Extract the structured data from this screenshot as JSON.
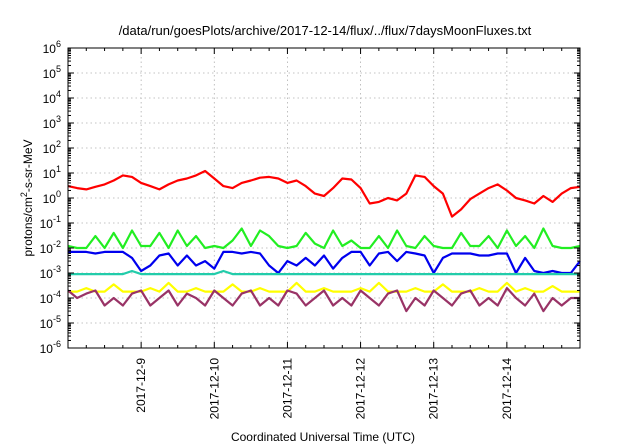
{
  "chart_data": {
    "type": "line",
    "title": "/data/run/goesPlots/archive/2017-12-14/flux/../flux/7daysMoonFluxes.txt",
    "xlabel": "Coordinated Universal Time (UTC)",
    "ylabel_parts": [
      "protons/cm",
      "2",
      "-s-sr-MeV"
    ],
    "yscale": "log",
    "ylim": [
      1e-06,
      1000000.0
    ],
    "xlim": [
      "2017-12-08T00:00",
      "2017-12-15T00:00"
    ],
    "grid": true,
    "legend": "none",
    "x_ticks": [
      "2017-12-9",
      "2017-12-10",
      "2017-12-11",
      "2017-12-12",
      "2017-12-13",
      "2017-12-14"
    ],
    "y_ticks": [
      {
        "base": "10",
        "exp": "-6",
        "value": 1e-06
      },
      {
        "base": "10",
        "exp": "-5",
        "value": 1e-05
      },
      {
        "base": "10",
        "exp": "-4",
        "value": 0.0001
      },
      {
        "base": "10",
        "exp": "-3",
        "value": 0.001
      },
      {
        "base": "10",
        "exp": "-2",
        "value": 0.01
      },
      {
        "base": "10",
        "exp": "-1",
        "value": 0.1
      },
      {
        "base": "10",
        "exp": "0",
        "value": 1
      },
      {
        "base": "10",
        "exp": "1",
        "value": 10
      },
      {
        "base": "10",
        "exp": "2",
        "value": 100
      },
      {
        "base": "10",
        "exp": "3",
        "value": 1000
      },
      {
        "base": "10",
        "exp": "4",
        "value": 10000
      },
      {
        "base": "10",
        "exp": "5",
        "value": 100000
      },
      {
        "base": "10",
        "exp": "6",
        "value": 1000000
      }
    ],
    "series": [
      {
        "color": "#ff0000",
        "x": [
          "2017-12-08T00:00",
          "2017-12-08T03:00",
          "2017-12-08T06:00",
          "2017-12-08T09:00",
          "2017-12-08T12:00",
          "2017-12-08T15:00",
          "2017-12-08T18:00",
          "2017-12-08T21:00",
          "2017-12-09T00:00",
          "2017-12-09T03:00",
          "2017-12-09T06:00",
          "2017-12-09T09:00",
          "2017-12-09T12:00",
          "2017-12-09T15:00",
          "2017-12-09T18:00",
          "2017-12-09T21:00",
          "2017-12-10T00:00",
          "2017-12-10T03:00",
          "2017-12-10T06:00",
          "2017-12-10T09:00",
          "2017-12-10T12:00",
          "2017-12-10T15:00",
          "2017-12-10T18:00",
          "2017-12-10T21:00",
          "2017-12-11T00:00",
          "2017-12-11T03:00",
          "2017-12-11T06:00",
          "2017-12-11T09:00",
          "2017-12-11T12:00",
          "2017-12-11T15:00",
          "2017-12-11T18:00",
          "2017-12-11T21:00",
          "2017-12-12T00:00",
          "2017-12-12T03:00",
          "2017-12-12T06:00",
          "2017-12-12T09:00",
          "2017-12-12T12:00",
          "2017-12-12T15:00",
          "2017-12-12T18:00",
          "2017-12-12T21:00",
          "2017-12-13T00:00",
          "2017-12-13T03:00",
          "2017-12-13T06:00",
          "2017-12-13T09:00",
          "2017-12-13T12:00",
          "2017-12-13T15:00",
          "2017-12-13T18:00",
          "2017-12-13T21:00",
          "2017-12-14T00:00",
          "2017-12-14T03:00",
          "2017-12-14T06:00",
          "2017-12-14T09:00",
          "2017-12-14T12:00",
          "2017-12-14T15:00",
          "2017-12-14T18:00",
          "2017-12-14T21:00",
          "2017-12-15T00:00"
        ],
        "values": [
          3.0,
          2.5,
          2.2,
          2.8,
          3.5,
          5,
          8,
          7,
          4,
          3,
          2.2,
          3.5,
          5,
          6,
          8,
          12,
          6,
          3,
          2.5,
          4,
          5,
          6.5,
          7,
          6,
          4,
          5,
          3,
          1.5,
          1.2,
          2.5,
          6,
          5.5,
          2.5,
          0.6,
          0.7,
          1,
          0.8,
          1.5,
          8,
          7,
          3,
          1.5,
          0.18,
          0.35,
          0.9,
          1.5,
          2.5,
          3.5,
          2,
          1,
          0.8,
          0.6,
          1.2,
          0.7,
          1.5,
          2.5,
          2.8
        ]
      },
      {
        "color": "#22ee22",
        "x": [
          "2017-12-08T00:00",
          "2017-12-08T03:00",
          "2017-12-08T06:00",
          "2017-12-08T09:00",
          "2017-12-08T12:00",
          "2017-12-08T15:00",
          "2017-12-08T18:00",
          "2017-12-08T21:00",
          "2017-12-09T00:00",
          "2017-12-09T03:00",
          "2017-12-09T06:00",
          "2017-12-09T09:00",
          "2017-12-09T12:00",
          "2017-12-09T15:00",
          "2017-12-09T18:00",
          "2017-12-09T21:00",
          "2017-12-10T00:00",
          "2017-12-10T03:00",
          "2017-12-10T06:00",
          "2017-12-10T09:00",
          "2017-12-10T12:00",
          "2017-12-10T15:00",
          "2017-12-10T18:00",
          "2017-12-10T21:00",
          "2017-12-11T00:00",
          "2017-12-11T03:00",
          "2017-12-11T06:00",
          "2017-12-11T09:00",
          "2017-12-11T12:00",
          "2017-12-11T15:00",
          "2017-12-11T18:00",
          "2017-12-11T21:00",
          "2017-12-12T00:00",
          "2017-12-12T03:00",
          "2017-12-12T06:00",
          "2017-12-12T09:00",
          "2017-12-12T12:00",
          "2017-12-12T15:00",
          "2017-12-12T18:00",
          "2017-12-12T21:00",
          "2017-12-13T00:00",
          "2017-12-13T03:00",
          "2017-12-13T06:00",
          "2017-12-13T09:00",
          "2017-12-13T12:00",
          "2017-12-13T15:00",
          "2017-12-13T18:00",
          "2017-12-13T21:00",
          "2017-12-14T00:00",
          "2017-12-14T03:00",
          "2017-12-14T06:00",
          "2017-12-14T09:00",
          "2017-12-14T12:00",
          "2017-12-14T15:00",
          "2017-12-14T18:00",
          "2017-12-14T21:00",
          "2017-12-15T00:00"
        ],
        "values": [
          0.012,
          0.01,
          0.01,
          0.03,
          0.01,
          0.04,
          0.01,
          0.05,
          0.012,
          0.012,
          0.04,
          0.01,
          0.05,
          0.012,
          0.03,
          0.01,
          0.012,
          0.01,
          0.02,
          0.06,
          0.012,
          0.05,
          0.03,
          0.012,
          0.01,
          0.012,
          0.04,
          0.015,
          0.01,
          0.05,
          0.012,
          0.02,
          0.01,
          0.01,
          0.03,
          0.01,
          0.05,
          0.012,
          0.01,
          0.03,
          0.012,
          0.01,
          0.01,
          0.04,
          0.012,
          0.012,
          0.03,
          0.01,
          0.05,
          0.012,
          0.03,
          0.01,
          0.06,
          0.012,
          0.01,
          0.01,
          0.012
        ]
      },
      {
        "color": "#0000ee",
        "x": [
          "2017-12-08T00:00",
          "2017-12-08T03:00",
          "2017-12-08T06:00",
          "2017-12-08T09:00",
          "2017-12-08T12:00",
          "2017-12-08T15:00",
          "2017-12-08T18:00",
          "2017-12-08T21:00",
          "2017-12-09T00:00",
          "2017-12-09T03:00",
          "2017-12-09T06:00",
          "2017-12-09T09:00",
          "2017-12-09T12:00",
          "2017-12-09T15:00",
          "2017-12-09T18:00",
          "2017-12-09T21:00",
          "2017-12-10T00:00",
          "2017-12-10T03:00",
          "2017-12-10T06:00",
          "2017-12-10T09:00",
          "2017-12-10T12:00",
          "2017-12-10T15:00",
          "2017-12-10T18:00",
          "2017-12-10T21:00",
          "2017-12-11T00:00",
          "2017-12-11T03:00",
          "2017-12-11T06:00",
          "2017-12-11T09:00",
          "2017-12-11T12:00",
          "2017-12-11T15:00",
          "2017-12-11T18:00",
          "2017-12-11T21:00",
          "2017-12-12T00:00",
          "2017-12-12T03:00",
          "2017-12-12T06:00",
          "2017-12-12T09:00",
          "2017-12-12T12:00",
          "2017-12-12T15:00",
          "2017-12-12T18:00",
          "2017-12-12T21:00",
          "2017-12-13T00:00",
          "2017-12-13T03:00",
          "2017-12-13T06:00",
          "2017-12-13T09:00",
          "2017-12-13T12:00",
          "2017-12-13T15:00",
          "2017-12-13T18:00",
          "2017-12-13T21:00",
          "2017-12-14T00:00",
          "2017-12-14T03:00",
          "2017-12-14T06:00",
          "2017-12-14T09:00",
          "2017-12-14T12:00",
          "2017-12-14T15:00",
          "2017-12-14T18:00",
          "2017-12-14T21:00",
          "2017-12-15T00:00"
        ],
        "values": [
          0.007,
          0.007,
          0.007,
          0.006,
          0.007,
          0.007,
          0.007,
          0.004,
          0.0012,
          0.002,
          0.005,
          0.006,
          0.002,
          0.005,
          0.002,
          0.003,
          0.0015,
          0.007,
          0.007,
          0.006,
          0.007,
          0.006,
          0.002,
          0.001,
          0.003,
          0.002,
          0.004,
          0.002,
          0.005,
          0.0015,
          0.004,
          0.007,
          0.007,
          0.002,
          0.006,
          0.007,
          0.003,
          0.007,
          0.006,
          0.005,
          0.001,
          0.004,
          0.006,
          0.006,
          0.006,
          0.005,
          0.005,
          0.006,
          0.006,
          0.001,
          0.004,
          0.0012,
          0.001,
          0.0012,
          0.001,
          0.001,
          0.003
        ]
      },
      {
        "color": "#22ccaa",
        "x": [
          "2017-12-08T00:00",
          "2017-12-08T03:00",
          "2017-12-08T06:00",
          "2017-12-08T09:00",
          "2017-12-08T12:00",
          "2017-12-08T15:00",
          "2017-12-08T18:00",
          "2017-12-08T21:00",
          "2017-12-09T00:00",
          "2017-12-09T03:00",
          "2017-12-09T06:00",
          "2017-12-09T09:00",
          "2017-12-09T12:00",
          "2017-12-09T15:00",
          "2017-12-09T18:00",
          "2017-12-09T21:00",
          "2017-12-10T00:00",
          "2017-12-10T03:00",
          "2017-12-10T06:00",
          "2017-12-10T09:00",
          "2017-12-10T12:00",
          "2017-12-10T15:00",
          "2017-12-10T18:00",
          "2017-12-10T21:00",
          "2017-12-11T00:00",
          "2017-12-11T03:00",
          "2017-12-11T06:00",
          "2017-12-11T09:00",
          "2017-12-11T12:00",
          "2017-12-11T15:00",
          "2017-12-11T18:00",
          "2017-12-11T21:00",
          "2017-12-12T00:00",
          "2017-12-12T03:00",
          "2017-12-12T06:00",
          "2017-12-12T09:00",
          "2017-12-12T12:00",
          "2017-12-12T15:00",
          "2017-12-12T18:00",
          "2017-12-12T21:00",
          "2017-12-13T00:00",
          "2017-12-13T03:00",
          "2017-12-13T06:00",
          "2017-12-13T09:00",
          "2017-12-13T12:00",
          "2017-12-13T15:00",
          "2017-12-13T18:00",
          "2017-12-13T21:00",
          "2017-12-14T00:00",
          "2017-12-14T03:00",
          "2017-12-14T06:00",
          "2017-12-14T09:00",
          "2017-12-14T12:00",
          "2017-12-14T15:00",
          "2017-12-14T18:00",
          "2017-12-14T21:00",
          "2017-12-15T00:00"
        ],
        "values": [
          0.0009,
          0.0009,
          0.0009,
          0.0009,
          0.0009,
          0.0009,
          0.0009,
          0.0012,
          0.0009,
          0.0009,
          0.0009,
          0.0009,
          0.0009,
          0.0009,
          0.0009,
          0.0009,
          0.0009,
          0.0012,
          0.0009,
          0.0009,
          0.0009,
          0.0009,
          0.0009,
          0.0009,
          0.0009,
          0.0009,
          0.0009,
          0.0009,
          0.0009,
          0.0009,
          0.0009,
          0.0009,
          0.0009,
          0.0009,
          0.0009,
          0.0009,
          0.0009,
          0.0009,
          0.0009,
          0.0009,
          0.0009,
          0.0009,
          0.0009,
          0.0009,
          0.0009,
          0.0009,
          0.0009,
          0.0009,
          0.0009,
          0.0009,
          0.0009,
          0.0009,
          0.0009,
          0.0009,
          0.0009,
          0.0009,
          0.0009
        ]
      },
      {
        "color": "#ffff00",
        "x": [
          "2017-12-08T00:00",
          "2017-12-08T03:00",
          "2017-12-08T06:00",
          "2017-12-08T09:00",
          "2017-12-08T12:00",
          "2017-12-08T15:00",
          "2017-12-08T18:00",
          "2017-12-08T21:00",
          "2017-12-09T00:00",
          "2017-12-09T03:00",
          "2017-12-09T06:00",
          "2017-12-09T09:00",
          "2017-12-09T12:00",
          "2017-12-09T15:00",
          "2017-12-09T18:00",
          "2017-12-09T21:00",
          "2017-12-10T00:00",
          "2017-12-10T03:00",
          "2017-12-10T06:00",
          "2017-12-10T09:00",
          "2017-12-10T12:00",
          "2017-12-10T15:00",
          "2017-12-10T18:00",
          "2017-12-10T21:00",
          "2017-12-11T00:00",
          "2017-12-11T03:00",
          "2017-12-11T06:00",
          "2017-12-11T09:00",
          "2017-12-11T12:00",
          "2017-12-11T15:00",
          "2017-12-11T18:00",
          "2017-12-11T21:00",
          "2017-12-12T00:00",
          "2017-12-12T03:00",
          "2017-12-12T06:00",
          "2017-12-12T09:00",
          "2017-12-12T12:00",
          "2017-12-12T15:00",
          "2017-12-12T18:00",
          "2017-12-12T21:00",
          "2017-12-13T00:00",
          "2017-12-13T03:00",
          "2017-12-13T06:00",
          "2017-12-13T09:00",
          "2017-12-13T12:00",
          "2017-12-13T15:00",
          "2017-12-13T18:00",
          "2017-12-13T21:00",
          "2017-12-14T00:00",
          "2017-12-14T03:00",
          "2017-12-14T06:00",
          "2017-12-14T09:00",
          "2017-12-14T12:00",
          "2017-12-14T15:00",
          "2017-12-14T18:00",
          "2017-12-14T21:00",
          "2017-12-15T00:00"
        ],
        "values": [
          0.00018,
          0.00018,
          0.00025,
          0.00018,
          0.00018,
          0.00035,
          0.00018,
          0.00018,
          0.00018,
          0.00025,
          0.00018,
          0.0004,
          0.00018,
          0.00018,
          0.00025,
          0.00018,
          0.00018,
          0.00018,
          0.00035,
          0.00018,
          0.00018,
          0.00025,
          0.00018,
          0.00018,
          0.00018,
          0.0004,
          0.00018,
          0.00018,
          0.00025,
          0.00018,
          0.00018,
          0.00018,
          0.00025,
          0.00018,
          0.0004,
          0.00018,
          0.00018,
          0.00018,
          0.00025,
          0.00018,
          0.00018,
          0.00035,
          0.00018,
          0.00018,
          0.00018,
          0.00025,
          0.00018,
          0.00018,
          0.0004,
          0.00018,
          0.00025,
          0.00018,
          0.00018,
          0.0003,
          0.00018,
          0.00018,
          0.00018
        ]
      },
      {
        "color": "#993366",
        "x": [
          "2017-12-08T00:00",
          "2017-12-08T03:00",
          "2017-12-08T06:00",
          "2017-12-08T09:00",
          "2017-12-08T12:00",
          "2017-12-08T15:00",
          "2017-12-08T18:00",
          "2017-12-08T21:00",
          "2017-12-09T00:00",
          "2017-12-09T03:00",
          "2017-12-09T06:00",
          "2017-12-09T09:00",
          "2017-12-09T12:00",
          "2017-12-09T15:00",
          "2017-12-09T18:00",
          "2017-12-09T21:00",
          "2017-12-10T00:00",
          "2017-12-10T03:00",
          "2017-12-10T06:00",
          "2017-12-10T09:00",
          "2017-12-10T12:00",
          "2017-12-10T15:00",
          "2017-12-10T18:00",
          "2017-12-10T21:00",
          "2017-12-11T00:00",
          "2017-12-11T03:00",
          "2017-12-11T06:00",
          "2017-12-11T09:00",
          "2017-12-11T12:00",
          "2017-12-11T15:00",
          "2017-12-11T18:00",
          "2017-12-11T21:00",
          "2017-12-12T00:00",
          "2017-12-12T03:00",
          "2017-12-12T06:00",
          "2017-12-12T09:00",
          "2017-12-12T12:00",
          "2017-12-12T15:00",
          "2017-12-12T18:00",
          "2017-12-12T21:00",
          "2017-12-13T00:00",
          "2017-12-13T03:00",
          "2017-12-13T06:00",
          "2017-12-13T09:00",
          "2017-12-13T12:00",
          "2017-12-13T15:00",
          "2017-12-13T18:00",
          "2017-12-13T21:00",
          "2017-12-14T00:00",
          "2017-12-14T03:00",
          "2017-12-14T06:00",
          "2017-12-14T09:00",
          "2017-12-14T12:00",
          "2017-12-14T15:00",
          "2017-12-14T18:00",
          "2017-12-14T21:00",
          "2017-12-15T00:00"
        ],
        "values": [
          0.0002,
          0.0001,
          0.00015,
          0.0002,
          5e-05,
          0.0001,
          5e-05,
          0.00015,
          0.0002,
          5e-05,
          0.0001,
          0.0002,
          5e-05,
          0.00015,
          0.0001,
          5e-05,
          0.0002,
          0.0001,
          5e-05,
          0.00015,
          0.0002,
          5e-05,
          0.0001,
          5e-05,
          0.0002,
          0.00015,
          5e-05,
          0.0001,
          0.0002,
          5e-05,
          0.0001,
          5e-05,
          0.0002,
          0.0001,
          5e-05,
          0.00015,
          0.0002,
          3e-05,
          0.0001,
          5e-05,
          0.0002,
          0.0001,
          5e-05,
          0.00015,
          0.0002,
          5e-05,
          0.0001,
          5e-05,
          0.00025,
          0.0001,
          5e-05,
          0.00015,
          3e-05,
          0.0001,
          5e-05,
          0.0001,
          0.0001
        ]
      }
    ]
  }
}
